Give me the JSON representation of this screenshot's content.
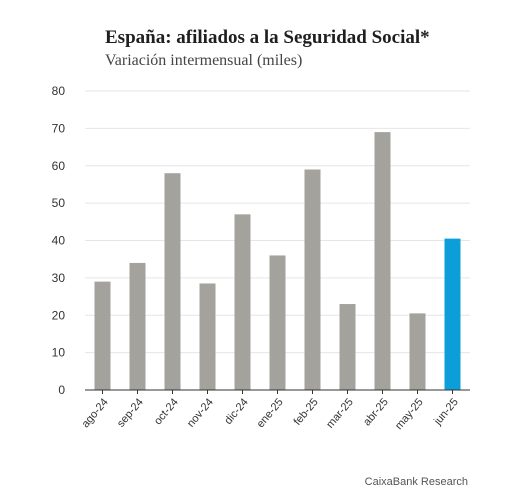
{
  "title": "España: afiliados a la Seguridad Social*",
  "subtitle": "Variación intermensual (miles)",
  "source": "CaixaBank Research",
  "colors": {
    "bar": "#a3a29d",
    "highlight": "#0b9ed9",
    "grid": "#e6e6e6",
    "axis": "#333333"
  },
  "chart_data": {
    "type": "bar",
    "title": "España: afiliados a la Seguridad Social*",
    "subtitle": "Variación intermensual (miles)",
    "xlabel": "",
    "ylabel": "",
    "ylim": [
      0,
      80
    ],
    "yticks": [
      0,
      10,
      20,
      30,
      40,
      50,
      60,
      70,
      80
    ],
    "grid": true,
    "categories": [
      "ago-24",
      "sep-24",
      "oct-24",
      "nov-24",
      "dic-24",
      "ene-25",
      "feb-25",
      "mar-25",
      "abr-25",
      "may-25",
      "jun-25"
    ],
    "values": [
      29,
      34,
      58,
      28.5,
      47,
      36,
      59,
      23,
      69,
      20.5,
      40.5
    ],
    "highlight_index": 10
  }
}
